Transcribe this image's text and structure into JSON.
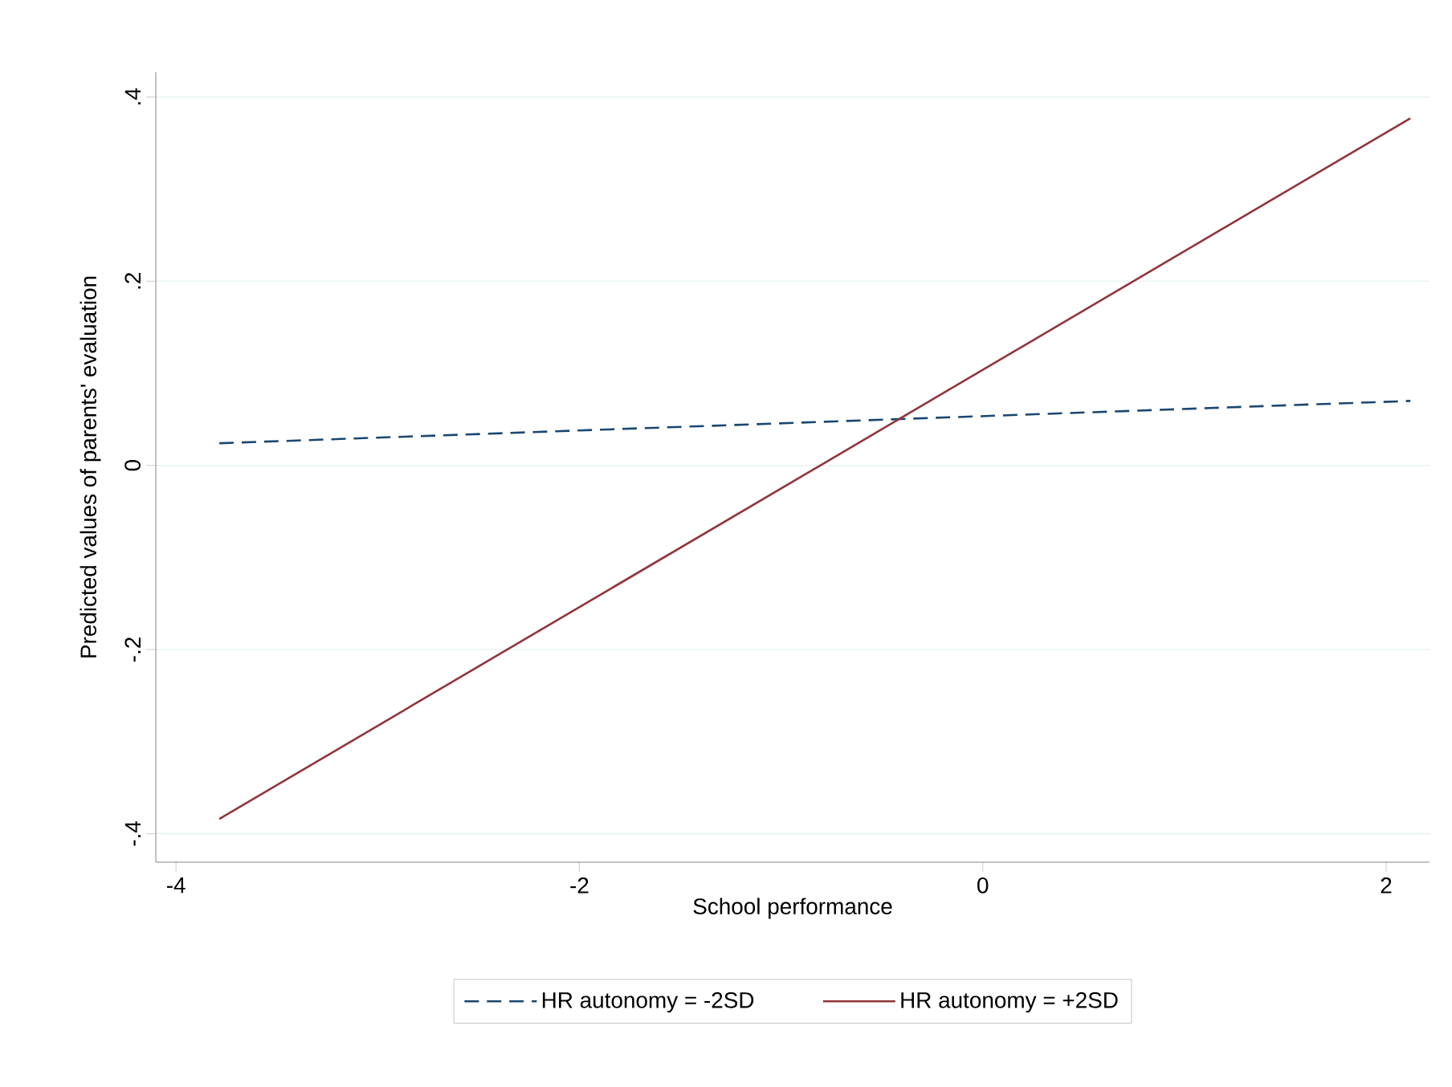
{
  "chart_data": {
    "type": "line",
    "xlabel": "School performance",
    "ylabel": "Predicted values of parents' evaluation",
    "xlim": [
      -4.1,
      2.215
    ],
    "ylim": [
      -0.431,
      0.427
    ],
    "xticks": [
      {
        "value": -4,
        "label": "-4"
      },
      {
        "value": -2,
        "label": "-2"
      },
      {
        "value": 0,
        "label": "0"
      },
      {
        "value": 2,
        "label": "2"
      }
    ],
    "yticks": [
      {
        "value": -0.4,
        "label": "-.4"
      },
      {
        "value": -0.2,
        "label": "-.2"
      },
      {
        "value": 0,
        "label": "0"
      },
      {
        "value": 0.2,
        "label": ".2"
      },
      {
        "value": 0.4,
        "label": ".4"
      }
    ],
    "grid": "y",
    "legend": "bottom",
    "marker": "none",
    "x": [
      -3.785,
      2.12
    ],
    "series": [
      {
        "name": "HR autonomy = -2SD",
        "color": "#1a476f",
        "line_style": "dashed",
        "values": [
          0.024,
          0.07
        ]
      },
      {
        "name": "HR autonomy = +2SD",
        "color": "#90353b",
        "line_style": "solid",
        "values": [
          -0.384,
          0.377
        ]
      }
    ]
  }
}
